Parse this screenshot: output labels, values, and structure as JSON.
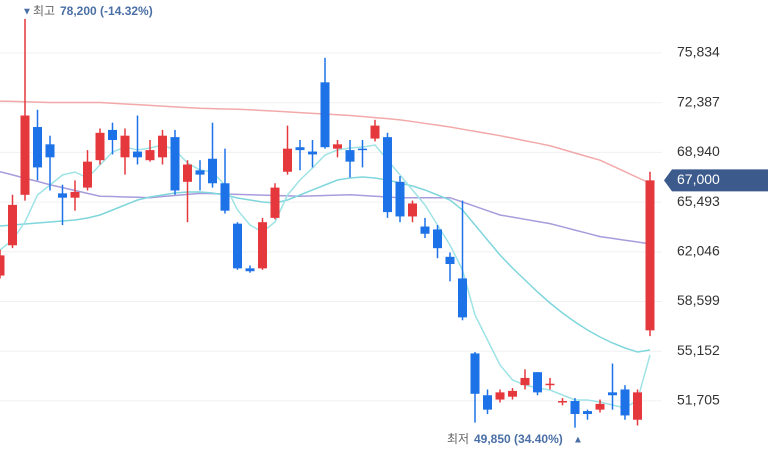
{
  "chart_data": {
    "type": "candlestick",
    "open": [
      60400,
      62500,
      66000,
      70700,
      69500,
      66100,
      65800,
      66500,
      68400,
      70500,
      68600,
      69000,
      68400,
      68600,
      70000,
      66900,
      67700,
      68500,
      66800,
      64000,
      60900,
      60900,
      64400,
      67600,
      69300,
      69000,
      73800,
      69200,
      69100,
      69200,
      69900,
      70000,
      66900,
      64500,
      63800,
      63600,
      61700,
      60200,
      55000,
      52100,
      51800,
      52000,
      52800,
      53700,
      52800,
      51600,
      51700,
      51000,
      51100,
      52300,
      52500,
      50400,
      56600
    ],
    "high": [
      62200,
      66000,
      78200,
      71900,
      70100,
      66700,
      67000,
      69100,
      70600,
      71000,
      70600,
      71500,
      69800,
      70500,
      70500,
      68400,
      68400,
      71000,
      69200,
      64100,
      61100,
      64400,
      66800,
      70800,
      69800,
      69800,
      75500,
      69800,
      69800,
      69800,
      71200,
      70300,
      67300,
      65600,
      64400,
      63900,
      62000,
      65600,
      55100,
      52500,
      52500,
      52600,
      53900,
      53700,
      53300,
      51900,
      51900,
      51100,
      51800,
      54300,
      52800,
      52500,
      67600
    ],
    "low": [
      60200,
      62300,
      65600,
      67000,
      66300,
      63900,
      64900,
      66300,
      68100,
      68800,
      67400,
      68100,
      68300,
      68100,
      66000,
      64100,
      66300,
      66500,
      64700,
      60800,
      60600,
      60800,
      64300,
      67400,
      67700,
      67900,
      69200,
      68600,
      67200,
      67900,
      69700,
      64400,
      64100,
      64100,
      63000,
      61600,
      60000,
      57300,
      50200,
      50800,
      51600,
      51800,
      52500,
      52100,
      52500,
      51400,
      49850,
      50400,
      50900,
      51100,
      50400,
      50000,
      56200
    ],
    "close": [
      61800,
      65300,
      71500,
      67900,
      68600,
      65800,
      66200,
      68300,
      70300,
      69800,
      70100,
      68600,
      69100,
      70100,
      66300,
      68100,
      67400,
      66800,
      64900,
      60900,
      60700,
      64100,
      66500,
      69200,
      69100,
      68800,
      69300,
      69500,
      68300,
      69100,
      70800,
      64800,
      64500,
      65400,
      63300,
      62300,
      61200,
      57500,
      52200,
      51100,
      52300,
      52400,
      53300,
      52300,
      52900,
      51700,
      50800,
      50800,
      51500,
      52100,
      50700,
      52300,
      67000
    ],
    "up_color": "#e5383d",
    "down_color": "#1d72e8",
    "moving_averages": [
      {
        "color": "#f3a9a9",
        "values": [
          72500,
          72480,
          72450,
          72430,
          72400,
          72400,
          72400,
          72400,
          72400,
          72350,
          72300,
          72250,
          72200,
          72150,
          72100,
          72050,
          72000,
          71980,
          71950,
          71930,
          71900,
          71850,
          71800,
          71750,
          71700,
          71650,
          71600,
          71550,
          71500,
          71430,
          71350,
          71280,
          71200,
          71080,
          70950,
          70830,
          70700,
          70550,
          70400,
          70250,
          70100,
          69930,
          69750,
          69580,
          69400,
          69150,
          68900,
          68650,
          68400,
          68000,
          67600,
          67200,
          66800
        ]
      },
      {
        "color": "#a89cdc",
        "values": [
          67600,
          67380,
          67150,
          66930,
          66700,
          66500,
          66300,
          66100,
          65900,
          65880,
          65850,
          65830,
          65800,
          65880,
          65950,
          66030,
          66100,
          66080,
          66050,
          66030,
          66000,
          65980,
          65950,
          65930,
          65900,
          65930,
          65950,
          65980,
          66000,
          65950,
          65900,
          65850,
          65800,
          65800,
          65800,
          65800,
          65800,
          65500,
          65200,
          64900,
          64600,
          64450,
          64300,
          64150,
          64000,
          63780,
          63550,
          63330,
          63100,
          62980,
          62850,
          62730,
          62600
        ]
      },
      {
        "color": "#7fd6dc",
        "values": [
          63837,
          63906,
          63976,
          64045,
          64114,
          64184,
          64253,
          64392,
          64600,
          64946,
          65293,
          65640,
          65848,
          65987,
          66126,
          66195,
          66195,
          66126,
          65987,
          65779,
          65640,
          65501,
          65432,
          65640,
          65987,
          66334,
          66680,
          67027,
          67166,
          67235,
          67166,
          67027,
          66819,
          66611,
          66334,
          65987,
          65640,
          64946,
          63906,
          62866,
          61826,
          60924,
          60092,
          59260,
          58497,
          57803,
          57179,
          56624,
          56139,
          55723,
          55376,
          55099,
          55237
        ]
      },
      {
        "color": "#9fe3e6",
        "values": [
          62172,
          62866,
          64114,
          65987,
          66680,
          67374,
          67582,
          67166,
          68067,
          68969,
          69316,
          69108,
          69246,
          69454,
          69108,
          68206,
          67721,
          67582,
          66680,
          64946,
          63906,
          63421,
          64114,
          65987,
          67027,
          67859,
          68761,
          69108,
          69246,
          69316,
          69454,
          68414,
          67374,
          66334,
          65293,
          63906,
          62519,
          60785,
          57665,
          55931,
          54197,
          53157,
          52810,
          52602,
          52463,
          52117,
          51770,
          51770,
          51631,
          51423,
          51215,
          51770,
          54891
        ]
      }
    ],
    "ylim": [
      47886,
      79510
    ],
    "yticks": [
      {
        "value": 51705,
        "label": "51,705"
      },
      {
        "value": 55152,
        "label": "55,152"
      },
      {
        "value": 58599,
        "label": "58,599"
      },
      {
        "value": 62046,
        "label": "62,046"
      },
      {
        "value": 65493,
        "label": "65,493"
      },
      {
        "value": 68940,
        "label": "68,940"
      },
      {
        "value": 72387,
        "label": "72,387"
      },
      {
        "value": 75834,
        "label": "75,834"
      }
    ],
    "grid": true,
    "high_annotation": {
      "marker": "▼",
      "label": "최고",
      "value": "78,200 (-14.32%)"
    },
    "low_annotation": {
      "label": "최저",
      "value": "49,850 (34.40%)",
      "marker": "▲"
    },
    "last_price": {
      "value": 67000,
      "label": "67,000",
      "color": "#3c5a8c"
    }
  }
}
